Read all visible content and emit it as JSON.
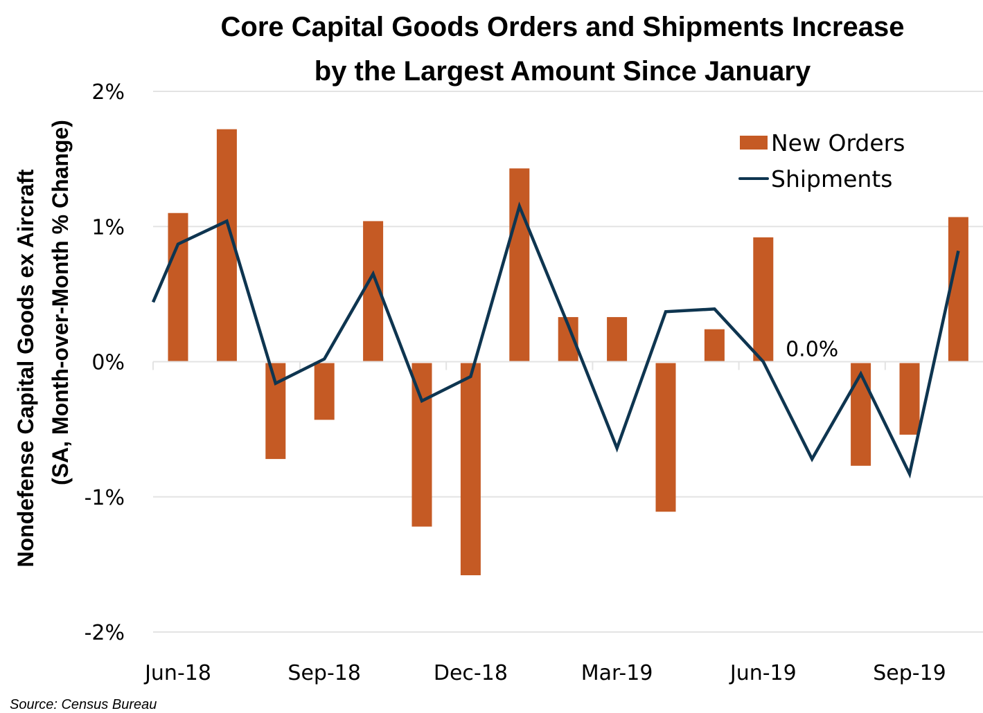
{
  "chart_data": {
    "type": "bar",
    "title": "Core Capital Goods Orders and Shipments Increase by the Largest Amount Since January",
    "title_lines": [
      "Core Capital Goods Orders and Shipments Increase",
      "by the Largest Amount Since January"
    ],
    "ylabel_lines": [
      "Nondefense Capital Goods ex Aircraft",
      "(SA, Month-over-Month % Change)"
    ],
    "xlabel": "",
    "ylim": [
      -2,
      2
    ],
    "yticks": [
      2,
      1,
      0,
      -1,
      -2
    ],
    "ytick_labels": [
      "2%",
      "1%",
      "0%",
      "-1%",
      "-2%"
    ],
    "grid": true,
    "categories": [
      "Jun-18",
      "Jul-18",
      "Aug-18",
      "Sep-18",
      "Oct-18",
      "Nov-18",
      "Dec-18",
      "Jan-19",
      "Feb-19",
      "Mar-19",
      "Apr-19",
      "May-19",
      "Jun-19",
      "Jul-19",
      "Aug-19",
      "Sep-19",
      "Oct-19"
    ],
    "xtick_labels": [
      {
        "index": 0,
        "label": "Jun-18"
      },
      {
        "index": 3,
        "label": "Sep-18"
      },
      {
        "index": 6,
        "label": "Dec-18"
      },
      {
        "index": 9,
        "label": "Mar-19"
      },
      {
        "index": 12,
        "label": "Jun-19"
      },
      {
        "index": 15,
        "label": "Sep-19"
      }
    ],
    "series": [
      {
        "name": "New Orders",
        "type": "bar",
        "color": "#C55A24",
        "values": [
          1.1,
          1.72,
          -0.72,
          -0.43,
          1.04,
          -1.22,
          -1.58,
          1.43,
          0.33,
          0.33,
          -1.11,
          0.24,
          0.92,
          0.0,
          -0.77,
          -0.54,
          1.07
        ]
      },
      {
        "name": "Shipments",
        "type": "line",
        "color": "#0E3550",
        "prior_value": 0.03,
        "values": [
          0.87,
          1.04,
          -0.16,
          0.02,
          0.65,
          -0.29,
          -0.11,
          1.15,
          0.27,
          -0.64,
          0.37,
          0.39,
          0.0,
          -0.72,
          -0.09,
          -0.83,
          0.82
        ]
      }
    ],
    "annotations": [
      {
        "text": "0.0%",
        "series": "New Orders",
        "index": 13
      }
    ],
    "legend": {
      "placement": "top-right",
      "entries": [
        "New Orders",
        "Shipments"
      ]
    },
    "source": "Source: Census Bureau"
  }
}
